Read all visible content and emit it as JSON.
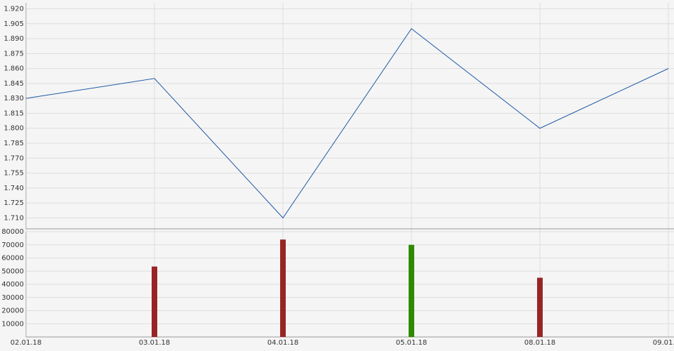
{
  "chart_data": [
    {
      "type": "line",
      "color": "#1f5aa6",
      "grid": true,
      "values": [
        1.83,
        1.85,
        1.71,
        1.9,
        1.8,
        1.86
      ],
      "ylim": [
        1.699,
        1.926
      ],
      "yticks": [
        {
          "value": 1.92,
          "label": "1.920"
        },
        1.905,
        {
          "value": 1.89,
          "label": "1.890"
        },
        1.875,
        {
          "value": 1.86,
          "label": "1.860"
        },
        1.845,
        {
          "value": 1.83,
          "label": "1.830"
        },
        1.815,
        {
          "value": 1.8,
          "label": "1.800"
        },
        1.785,
        {
          "value": 1.77,
          "label": "1.770"
        },
        1.755,
        {
          "value": 1.74,
          "label": "1.740"
        },
        1.725,
        {
          "value": 1.71,
          "label": "1.710"
        }
      ]
    },
    {
      "type": "bar",
      "grid": true,
      "categories": [
        "02.01.18",
        "03.01.18",
        "04.01.18",
        "05.01.18",
        "08.01.18",
        "09.01.18"
      ],
      "values": [
        null,
        53500,
        74000,
        70000,
        45000,
        null
      ],
      "colors": [
        null,
        "#982525",
        "#982525",
        "#2e8b00",
        "#982525",
        null
      ],
      "ylim": [
        0,
        80000
      ],
      "yticks": [
        10000,
        20000,
        30000,
        40000,
        50000,
        60000,
        70000,
        80000
      ]
    }
  ]
}
